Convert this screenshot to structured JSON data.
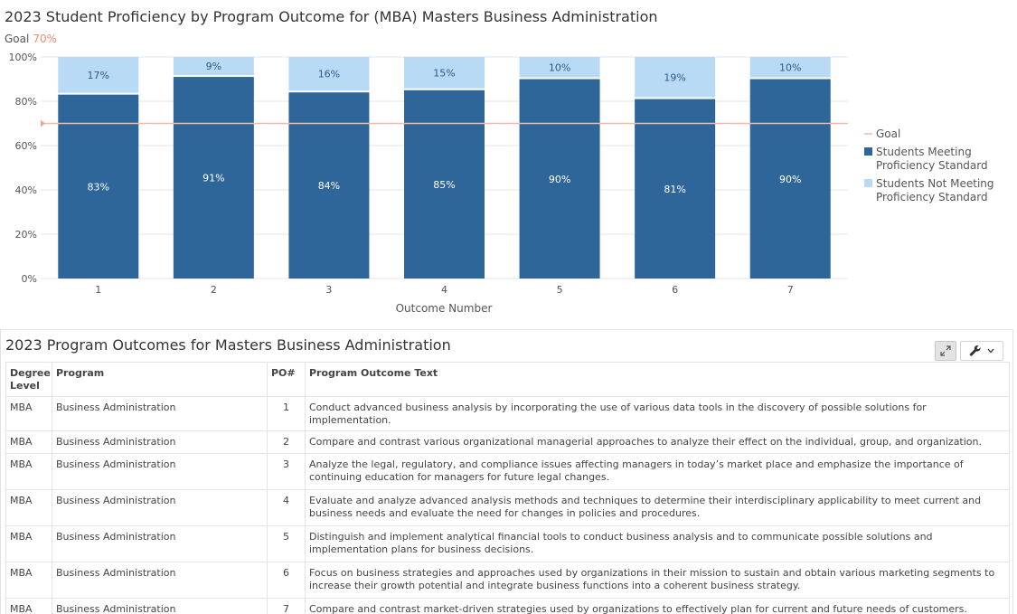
{
  "chart_data": {
    "type": "bar",
    "stacked": true,
    "title": "2023 Student Proficiency by Program Outcome for (MBA) Masters Business Administration",
    "goal_label": "Goal",
    "goal_value_label": "70%",
    "goal_value": 70,
    "xlabel": "Outcome Number",
    "ylabel": "",
    "ylim": [
      0,
      100
    ],
    "y_ticks": [
      "0%",
      "20%",
      "40%",
      "60%",
      "80%",
      "100%"
    ],
    "y_tick_values": [
      0,
      20,
      40,
      60,
      80,
      100
    ],
    "categories": [
      "1",
      "2",
      "3",
      "4",
      "5",
      "6",
      "7"
    ],
    "series": [
      {
        "name": "Students Meeting Proficiency Standard",
        "legend_lines": [
          "Students Meeting",
          "Proficiency Standard"
        ],
        "color": "#2e6699",
        "values": [
          83,
          91,
          84,
          85,
          90,
          81,
          90
        ],
        "labels": [
          "83%",
          "91%",
          "84%",
          "85%",
          "90%",
          "81%",
          "90%"
        ]
      },
      {
        "name": "Students Not Meeting Proficiency Standard",
        "legend_lines": [
          "Students Not Meeting",
          "Proficiency Standard"
        ],
        "color": "#b8daf5",
        "values": [
          17,
          9,
          16,
          15,
          10,
          19,
          10
        ],
        "labels": [
          "17%",
          "9%",
          "16%",
          "15%",
          "10%",
          "19%",
          "10%"
        ]
      }
    ],
    "goal_series": {
      "name": "Goal",
      "color": "#f4b8a6"
    },
    "grid": true,
    "legend_position": "right"
  },
  "table": {
    "title": "2023 Program Outcomes for Masters Business Administration",
    "tools": {
      "expand_icon": "expand-icon",
      "wrench_icon": "wrench-icon",
      "chevron_icon": "chevron-down-icon"
    },
    "columns": [
      "Degree Level",
      "Program",
      "PO#",
      "Program Outcome Text"
    ],
    "rows": [
      {
        "degree": "MBA",
        "program": "Business Administration",
        "po": "1",
        "text": "Conduct advanced business analysis by incorporating the use of various data tools in the discovery of possible solutions for implementation."
      },
      {
        "degree": "MBA",
        "program": "Business Administration",
        "po": "2",
        "text": "Compare and contrast various organizational managerial approaches to analyze their effect on the individual, group, and organization."
      },
      {
        "degree": "MBA",
        "program": "Business Administration",
        "po": "3",
        "text": "Analyze the legal, regulatory, and compliance issues affecting managers in today’s market place and emphasize the importance of continuing education for managers for future legal changes."
      },
      {
        "degree": "MBA",
        "program": "Business Administration",
        "po": "4",
        "text": "Evaluate and analyze advanced analysis methods and techniques to determine their interdisciplinary applicability to meet current and business needs and evaluate the need for changes in policies and procedures."
      },
      {
        "degree": "MBA",
        "program": "Business Administration",
        "po": "5",
        "text": "Distinguish and implement analytical financial tools to conduct business analysis and to communicate possible solutions and implementation plans for business decisions."
      },
      {
        "degree": "MBA",
        "program": "Business Administration",
        "po": "6",
        "text": "Focus on business strategies and approaches used by organizations in their mission to sustain and obtain various marketing segments to increase their growth potential and integrate business functions into a coherent business strategy."
      },
      {
        "degree": "MBA",
        "program": "Business Administration",
        "po": "7",
        "text": "Compare and contrast market-driven strategies used by organizations to effectively plan for current and future needs of customers."
      }
    ]
  }
}
